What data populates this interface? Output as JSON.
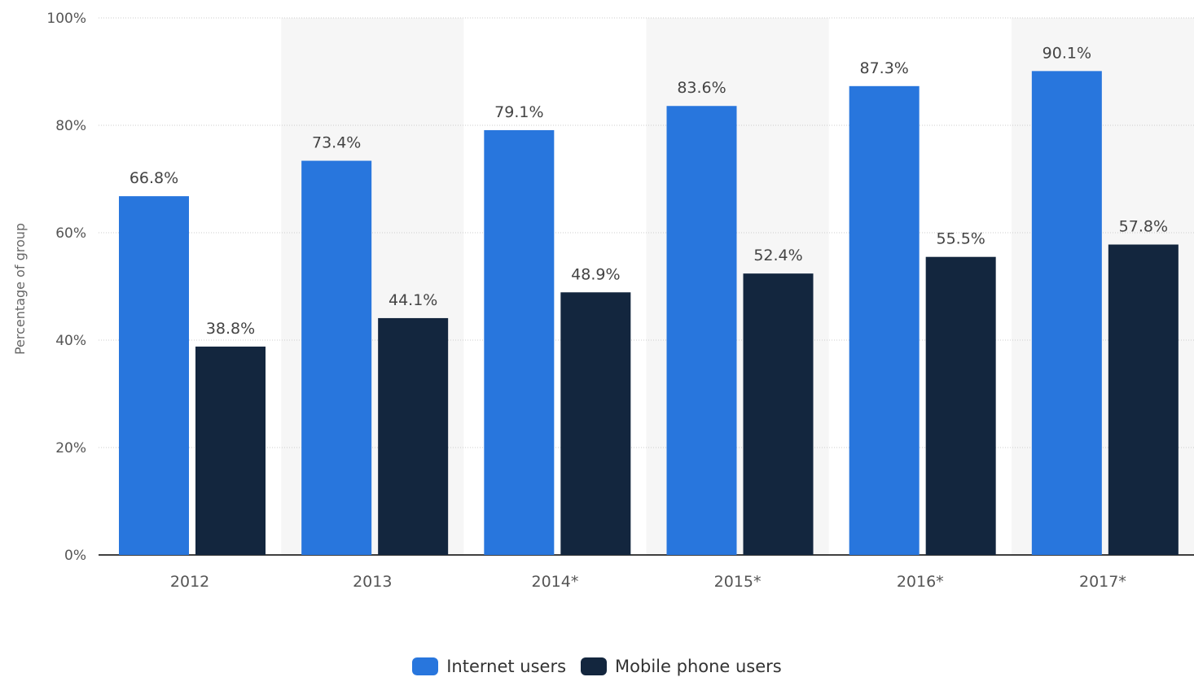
{
  "chart_data": {
    "type": "bar",
    "categories": [
      "2012",
      "2013",
      "2014*",
      "2015*",
      "2016*",
      "2017*"
    ],
    "series": [
      {
        "name": "Internet users",
        "values": [
          66.8,
          73.4,
          79.1,
          83.6,
          87.3,
          90.1
        ],
        "color": "#2876dd"
      },
      {
        "name": "Mobile phone users",
        "values": [
          38.8,
          44.1,
          48.9,
          52.4,
          55.5,
          57.8
        ],
        "color": "#13263e"
      }
    ],
    "data_labels": {
      "internet": [
        "66.8%",
        "73.4%",
        "79.1%",
        "83.6%",
        "87.3%",
        "90.1%"
      ],
      "mobile": [
        "38.8%",
        "44.1%",
        "48.9%",
        "52.4%",
        "55.5%",
        "57.8%"
      ]
    },
    "title": "",
    "xlabel": "",
    "ylabel": "Percentage of group",
    "ylim": [
      0,
      100
    ],
    "y_ticks": [
      "0%",
      "20%",
      "40%",
      "60%",
      "80%",
      "100%"
    ],
    "grid": true,
    "legend_position": "bottom-center",
    "colors": {
      "band": "#f6f6f6",
      "grid": "#cccccc",
      "axis": "#000000",
      "tick_text": "#555555",
      "label_text": "#444444"
    }
  },
  "legend": {
    "internet_label": "Internet users",
    "mobile_label": "Mobile phone users"
  }
}
